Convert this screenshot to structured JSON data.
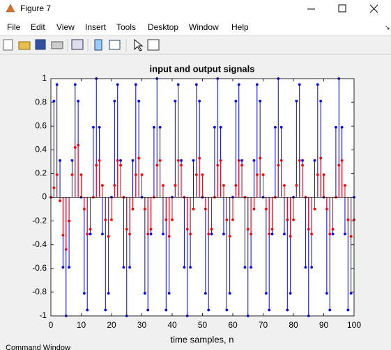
{
  "window": {
    "title": "Figure 7",
    "menu": [
      "File",
      "Edit",
      "View",
      "Insert",
      "Tools",
      "Desktop",
      "Window",
      "Help"
    ]
  },
  "chart_data": {
    "type": "stem",
    "title": "input and output signals",
    "x_label": "time samples, n",
    "x": [
      0,
      1,
      2,
      3,
      4,
      5,
      6,
      7,
      8,
      9,
      10,
      11,
      12,
      13,
      14,
      15,
      16,
      17,
      18,
      19,
      20,
      21,
      22,
      23,
      24,
      25,
      26,
      27,
      28,
      29,
      30,
      31,
      32,
      33,
      34,
      35,
      36,
      37,
      38,
      39,
      40,
      41,
      42,
      43,
      44,
      45,
      46,
      47,
      48,
      49,
      50,
      51,
      52,
      53,
      54,
      55,
      56,
      57,
      58,
      59,
      60,
      61,
      62,
      63,
      64,
      65,
      66,
      67,
      68,
      69,
      70,
      71,
      72,
      73,
      74,
      75,
      76,
      77,
      78,
      79,
      80,
      81,
      82,
      83,
      84,
      85,
      86,
      87,
      88,
      89,
      90,
      91,
      92,
      93,
      94,
      95,
      96,
      97,
      98,
      99,
      100
    ],
    "series": [
      {
        "color": "#0000ff",
        "values": [
          0,
          0.81,
          0.95,
          0.31,
          -0.59,
          -1,
          -0.59,
          0.31,
          0.95,
          0.81,
          0,
          -0.81,
          -0.95,
          -0.31,
          0.59,
          1,
          0.59,
          -0.31,
          -0.95,
          -0.81,
          0,
          0.81,
          0.95,
          0.31,
          -0.59,
          -1,
          -0.59,
          0.31,
          0.95,
          0.81,
          0,
          -0.81,
          -0.95,
          -0.31,
          0.59,
          1,
          0.59,
          -0.31,
          -0.95,
          -0.81,
          0,
          0.81,
          0.95,
          0.31,
          -0.59,
          -1,
          -0.59,
          0.31,
          0.95,
          0.81,
          0,
          -0.81,
          -0.95,
          -0.31,
          0.59,
          1,
          0.59,
          -0.31,
          -0.95,
          -0.81,
          0,
          0.81,
          0.95,
          0.31,
          -0.59,
          -1,
          -0.59,
          0.31,
          0.95,
          0.81,
          0,
          -0.81,
          -0.95,
          -0.31,
          0.59,
          1,
          0.59,
          -0.31,
          -0.95,
          -0.81,
          0,
          0.81,
          0.95,
          0.31,
          -0.59,
          -1,
          -0.59,
          0.31,
          0.95,
          0.81,
          0,
          -0.81,
          -0.95,
          -0.31,
          0.59,
          1,
          0.59,
          -0.31,
          -0.95,
          -0.81,
          0
        ]
      },
      {
        "color": "#ff0000",
        "values": [
          0,
          0.08,
          0.19,
          -0.03,
          -0.32,
          -0.44,
          -0.2,
          0.19,
          0.42,
          0.44,
          0.19,
          -0.1,
          -0.31,
          -0.27,
          0,
          0.27,
          0.31,
          0.1,
          -0.19,
          -0.33,
          -0.19,
          0.1,
          0.31,
          0.27,
          0,
          -0.27,
          -0.31,
          -0.1,
          0.19,
          0.33,
          0.19,
          -0.1,
          -0.31,
          -0.27,
          0,
          0.27,
          0.31,
          0.1,
          -0.19,
          -0.33,
          -0.19,
          0.1,
          0.31,
          0.27,
          0,
          -0.27,
          -0.31,
          -0.1,
          0.19,
          0.33,
          0.19,
          -0.1,
          -0.31,
          -0.27,
          0,
          0.27,
          0.31,
          0.1,
          -0.19,
          -0.33,
          -0.19,
          0.1,
          0.31,
          0.27,
          0,
          -0.27,
          -0.31,
          -0.1,
          0.19,
          0.33,
          0.19,
          -0.1,
          -0.31,
          -0.27,
          0,
          0.27,
          0.31,
          0.1,
          -0.19,
          -0.33,
          -0.19,
          0.1,
          0.31,
          0.27,
          0,
          -0.27,
          -0.31,
          -0.1,
          0.19,
          0.33,
          0.19,
          -0.1,
          -0.31,
          -0.27,
          0,
          0.27,
          0.31,
          0.1,
          -0.19,
          -0.33,
          -0.19
        ]
      }
    ],
    "xlim": [
      0,
      100
    ],
    "ylim": [
      -1,
      1
    ],
    "xticks": [
      0,
      10,
      20,
      30,
      40,
      50,
      60,
      70,
      80,
      90,
      100
    ],
    "yticks": [
      -1,
      -0.8,
      -0.6,
      -0.4,
      -0.2,
      0,
      0.2,
      0.4,
      0.6,
      0.8,
      1
    ]
  },
  "footer": "Command Window"
}
